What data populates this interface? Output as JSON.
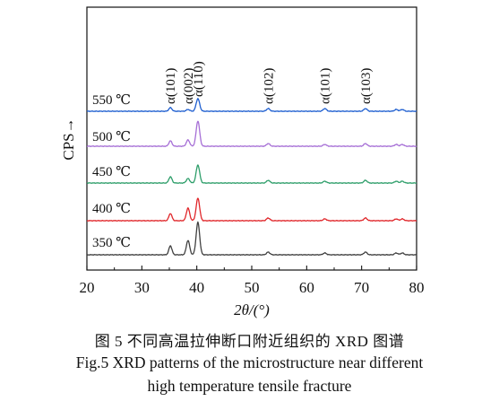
{
  "chart_data": {
    "type": "line",
    "xlabel": "2θ/(°)",
    "ylabel": "CPS→",
    "xlim": [
      20,
      80
    ],
    "xticks": [
      "20",
      "30",
      "40",
      "50",
      "60",
      "70",
      "80"
    ],
    "grid": false,
    "legend": "none",
    "peak_labels": [
      {
        "label": "α(101)",
        "x": 35.2
      },
      {
        "label": "α(002)",
        "x": 38.4
      },
      {
        "label": "α(110)",
        "x": 40.2
      },
      {
        "label": "α(102)",
        "x": 53.0
      },
      {
        "label": "α(101)",
        "x": 63.3
      },
      {
        "label": "α(103)",
        "x": 70.7
      }
    ],
    "peak_positions": [
      35.2,
      38.4,
      40.2,
      53.0,
      63.3,
      70.7,
      76.3,
      77.4
    ],
    "series": [
      {
        "name": "550 ℃",
        "color": "#1f5fd0",
        "peak_heights": [
          4,
          2,
          14,
          3,
          3,
          3,
          2,
          2
        ]
      },
      {
        "name": "500 ℃",
        "color": "#a66fd6",
        "peak_heights": [
          6,
          7,
          28,
          3,
          2,
          3,
          2,
          2
        ]
      },
      {
        "name": "450 ℃",
        "color": "#2e9e6a",
        "peak_heights": [
          7,
          5,
          20,
          3,
          2,
          3,
          2,
          2
        ]
      },
      {
        "name": "400 ℃",
        "color": "#e0262a",
        "peak_heights": [
          8,
          14,
          25,
          3,
          2,
          3,
          2,
          2
        ]
      },
      {
        "name": "350 ℃",
        "color": "#404040",
        "peak_heights": [
          10,
          16,
          36,
          3,
          2,
          3,
          2,
          2
        ]
      }
    ]
  },
  "captions": {
    "chinese": "图 5 不同高温拉伸断口附近组织的 XRD 图谱",
    "english_line1": "Fig.5  XRD patterns of the microstructure near different",
    "english_line2": "high temperature tensile fracture"
  }
}
